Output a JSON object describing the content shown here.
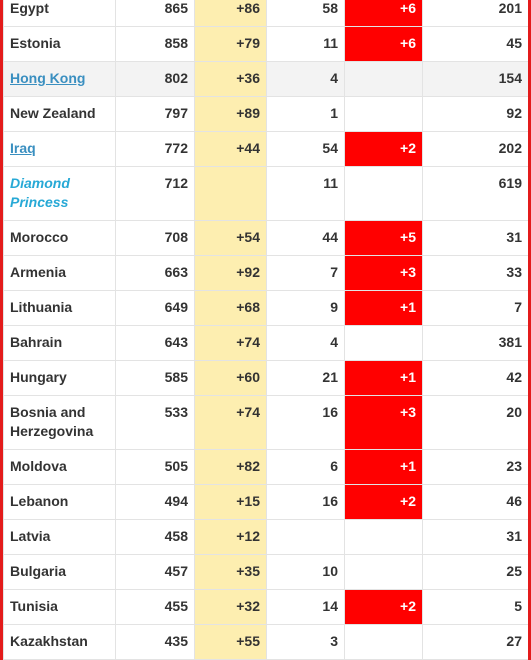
{
  "table": {
    "rows": [
      {
        "country": "Egypt",
        "total_cases": "865",
        "new_cases": "+86",
        "total_deaths": "58",
        "new_deaths": "+6",
        "total_recovered": "201",
        "style": "plain"
      },
      {
        "country": "Estonia",
        "total_cases": "858",
        "new_cases": "+79",
        "total_deaths": "11",
        "new_deaths": "+6",
        "total_recovered": "45",
        "style": "plain"
      },
      {
        "country": "Hong Kong",
        "total_cases": "802",
        "new_cases": "+36",
        "total_deaths": "4",
        "new_deaths": "",
        "total_recovered": "154",
        "style": "link"
      },
      {
        "country": "New Zealand",
        "total_cases": "797",
        "new_cases": "+89",
        "total_deaths": "1",
        "new_deaths": "",
        "total_recovered": "92",
        "style": "plain"
      },
      {
        "country": "Iraq",
        "total_cases": "772",
        "new_cases": "+44",
        "total_deaths": "54",
        "new_deaths": "+2",
        "total_recovered": "202",
        "style": "link"
      },
      {
        "country": "Diamond Princess",
        "total_cases": "712",
        "new_cases": "",
        "total_deaths": "11",
        "new_deaths": "",
        "total_recovered": "619",
        "style": "ship"
      },
      {
        "country": "Morocco",
        "total_cases": "708",
        "new_cases": "+54",
        "total_deaths": "44",
        "new_deaths": "+5",
        "total_recovered": "31",
        "style": "plain"
      },
      {
        "country": "Armenia",
        "total_cases": "663",
        "new_cases": "+92",
        "total_deaths": "7",
        "new_deaths": "+3",
        "total_recovered": "33",
        "style": "plain"
      },
      {
        "country": "Lithuania",
        "total_cases": "649",
        "new_cases": "+68",
        "total_deaths": "9",
        "new_deaths": "+1",
        "total_recovered": "7",
        "style": "plain"
      },
      {
        "country": "Bahrain",
        "total_cases": "643",
        "new_cases": "+74",
        "total_deaths": "4",
        "new_deaths": "",
        "total_recovered": "381",
        "style": "plain"
      },
      {
        "country": "Hungary",
        "total_cases": "585",
        "new_cases": "+60",
        "total_deaths": "21",
        "new_deaths": "+1",
        "total_recovered": "42",
        "style": "plain"
      },
      {
        "country": "Bosnia and Herzegovina",
        "total_cases": "533",
        "new_cases": "+74",
        "total_deaths": "16",
        "new_deaths": "+3",
        "total_recovered": "20",
        "style": "plain"
      },
      {
        "country": "Moldova",
        "total_cases": "505",
        "new_cases": "+82",
        "total_deaths": "6",
        "new_deaths": "+1",
        "total_recovered": "23",
        "style": "plain"
      },
      {
        "country": "Lebanon",
        "total_cases": "494",
        "new_cases": "+15",
        "total_deaths": "16",
        "new_deaths": "+2",
        "total_recovered": "46",
        "style": "plain"
      },
      {
        "country": "Latvia",
        "total_cases": "458",
        "new_cases": "+12",
        "total_deaths": "",
        "new_deaths": "",
        "total_recovered": "31",
        "style": "plain"
      },
      {
        "country": "Bulgaria",
        "total_cases": "457",
        "new_cases": "+35",
        "total_deaths": "10",
        "new_deaths": "",
        "total_recovered": "25",
        "style": "plain"
      },
      {
        "country": "Tunisia",
        "total_cases": "455",
        "new_cases": "+32",
        "total_deaths": "14",
        "new_deaths": "+2",
        "total_recovered": "5",
        "style": "plain"
      },
      {
        "country": "Kazakhstan",
        "total_cases": "435",
        "new_cases": "+55",
        "total_deaths": "3",
        "new_deaths": "",
        "total_recovered": "27",
        "style": "plain"
      }
    ]
  },
  "colors": {
    "new_cases_bg": "#fdeeb0",
    "new_deaths_bg": "#ff0000",
    "link": "#3a8fc0",
    "ship": "#27a9d6",
    "frame_border": "#e31b1b"
  }
}
